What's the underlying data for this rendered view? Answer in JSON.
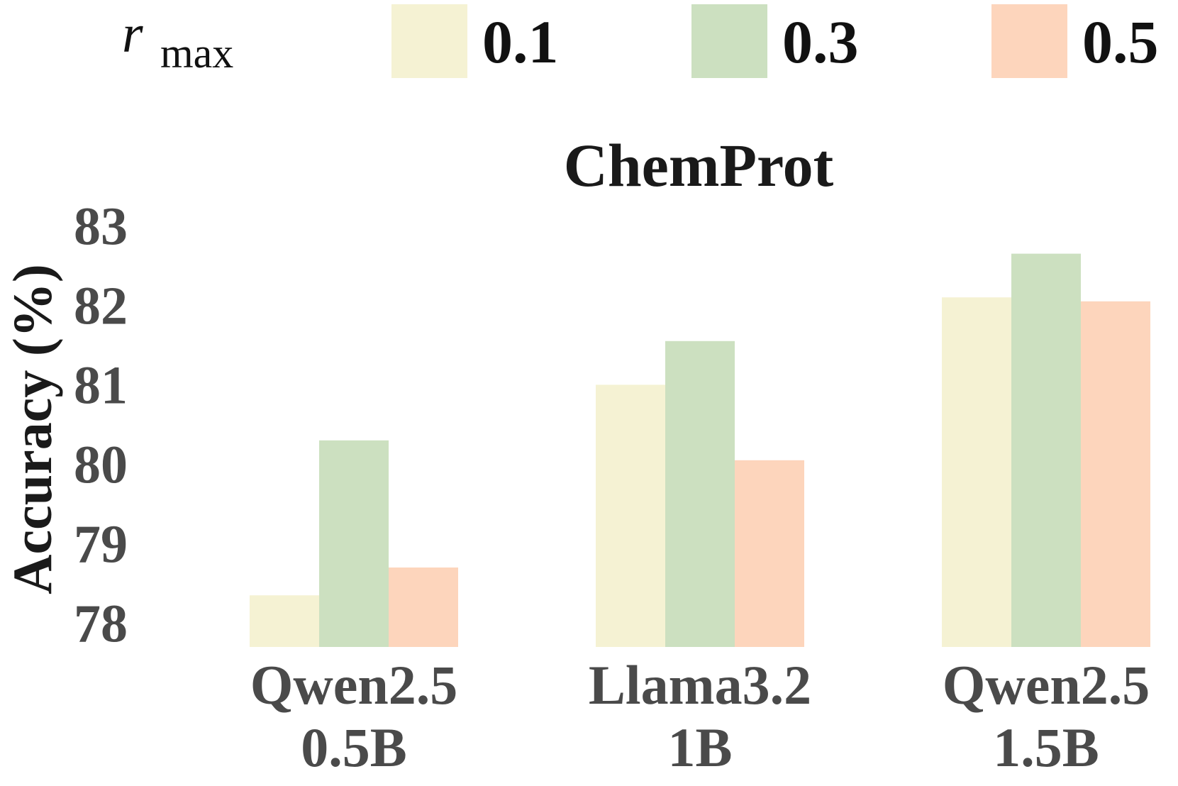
{
  "legend": {
    "title_main": "r",
    "title_sub": "max"
  },
  "chart_data": {
    "type": "bar",
    "title": "ChemProt",
    "ylabel": "Accuracy (%)",
    "xlabel": "",
    "categories": [
      [
        "Qwen2.5",
        "0.5B"
      ],
      [
        "Llama3.2",
        "1B"
      ],
      [
        "Qwen2.5",
        "1.5B"
      ]
    ],
    "series": [
      {
        "name": "0.1",
        "color": "#f5f2d3",
        "values": [
          78.35,
          81.0,
          82.1
        ]
      },
      {
        "name": "0.3",
        "color": "#cce0c0",
        "values": [
          80.3,
          81.55,
          82.65
        ]
      },
      {
        "name": "0.5",
        "color": "#fdd5bc",
        "values": [
          78.7,
          80.05,
          82.05
        ]
      }
    ],
    "ylim": [
      77.7,
      83.0
    ],
    "yticks": [
      78,
      79,
      80,
      81,
      82,
      83
    ],
    "grid": false,
    "legend_position": "top"
  }
}
